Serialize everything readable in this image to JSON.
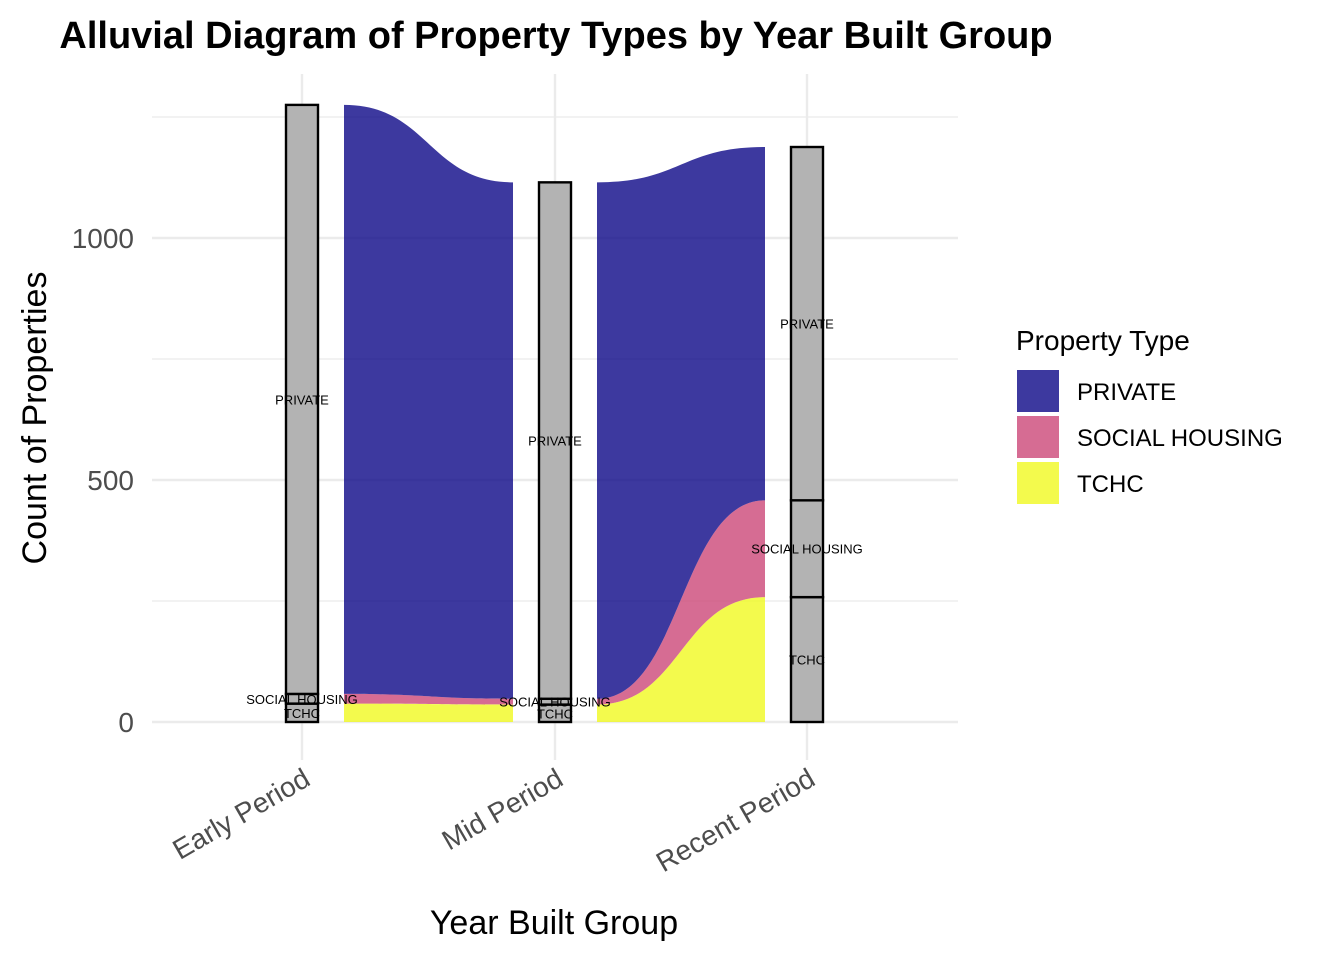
{
  "chart_data": {
    "type": "alluvial",
    "title": "Alluvial Diagram of Property Types by Year Built Group",
    "xlabel": "Year Built Group",
    "ylabel": "Count of Properties",
    "axes": [
      "Early Period",
      "Mid Period",
      "Recent Period"
    ],
    "ylim": [
      0,
      1300
    ],
    "yticks": [
      0,
      500,
      1000
    ],
    "grid": true,
    "legend": {
      "title": "Property Type",
      "position": "right",
      "entries": [
        "PRIVATE",
        "SOCIAL HOUSING",
        "TCHC"
      ]
    },
    "colors": {
      "PRIVATE": "#0d0887",
      "SOCIAL HOUSING": "#cc4778",
      "TCHC": "#f0f921",
      "stratum_fill": "#b3b3b3"
    },
    "strata": [
      {
        "axis": "Early Period",
        "values": {
          "TCHC": 38,
          "SOCIAL HOUSING": 20,
          "PRIVATE": 1217
        }
      },
      {
        "axis": "Mid Period",
        "values": {
          "TCHC": 36,
          "SOCIAL HOUSING": 12,
          "PRIVATE": 1067
        }
      },
      {
        "axis": "Recent Period",
        "values": {
          "TCHC": 258,
          "SOCIAL HOUSING": 200,
          "PRIVATE": 730
        }
      }
    ],
    "flows": [
      {
        "segment": "Early Period → Mid Period",
        "TCHC": [
          38,
          36
        ],
        "SOCIAL HOUSING": [
          20,
          12
        ],
        "PRIVATE": [
          1217,
          1067
        ]
      },
      {
        "segment": "Mid Period → Recent Period",
        "TCHC": [
          36,
          258
        ],
        "SOCIAL HOUSING": [
          12,
          200
        ],
        "PRIVATE": [
          1067,
          730
        ]
      }
    ]
  }
}
